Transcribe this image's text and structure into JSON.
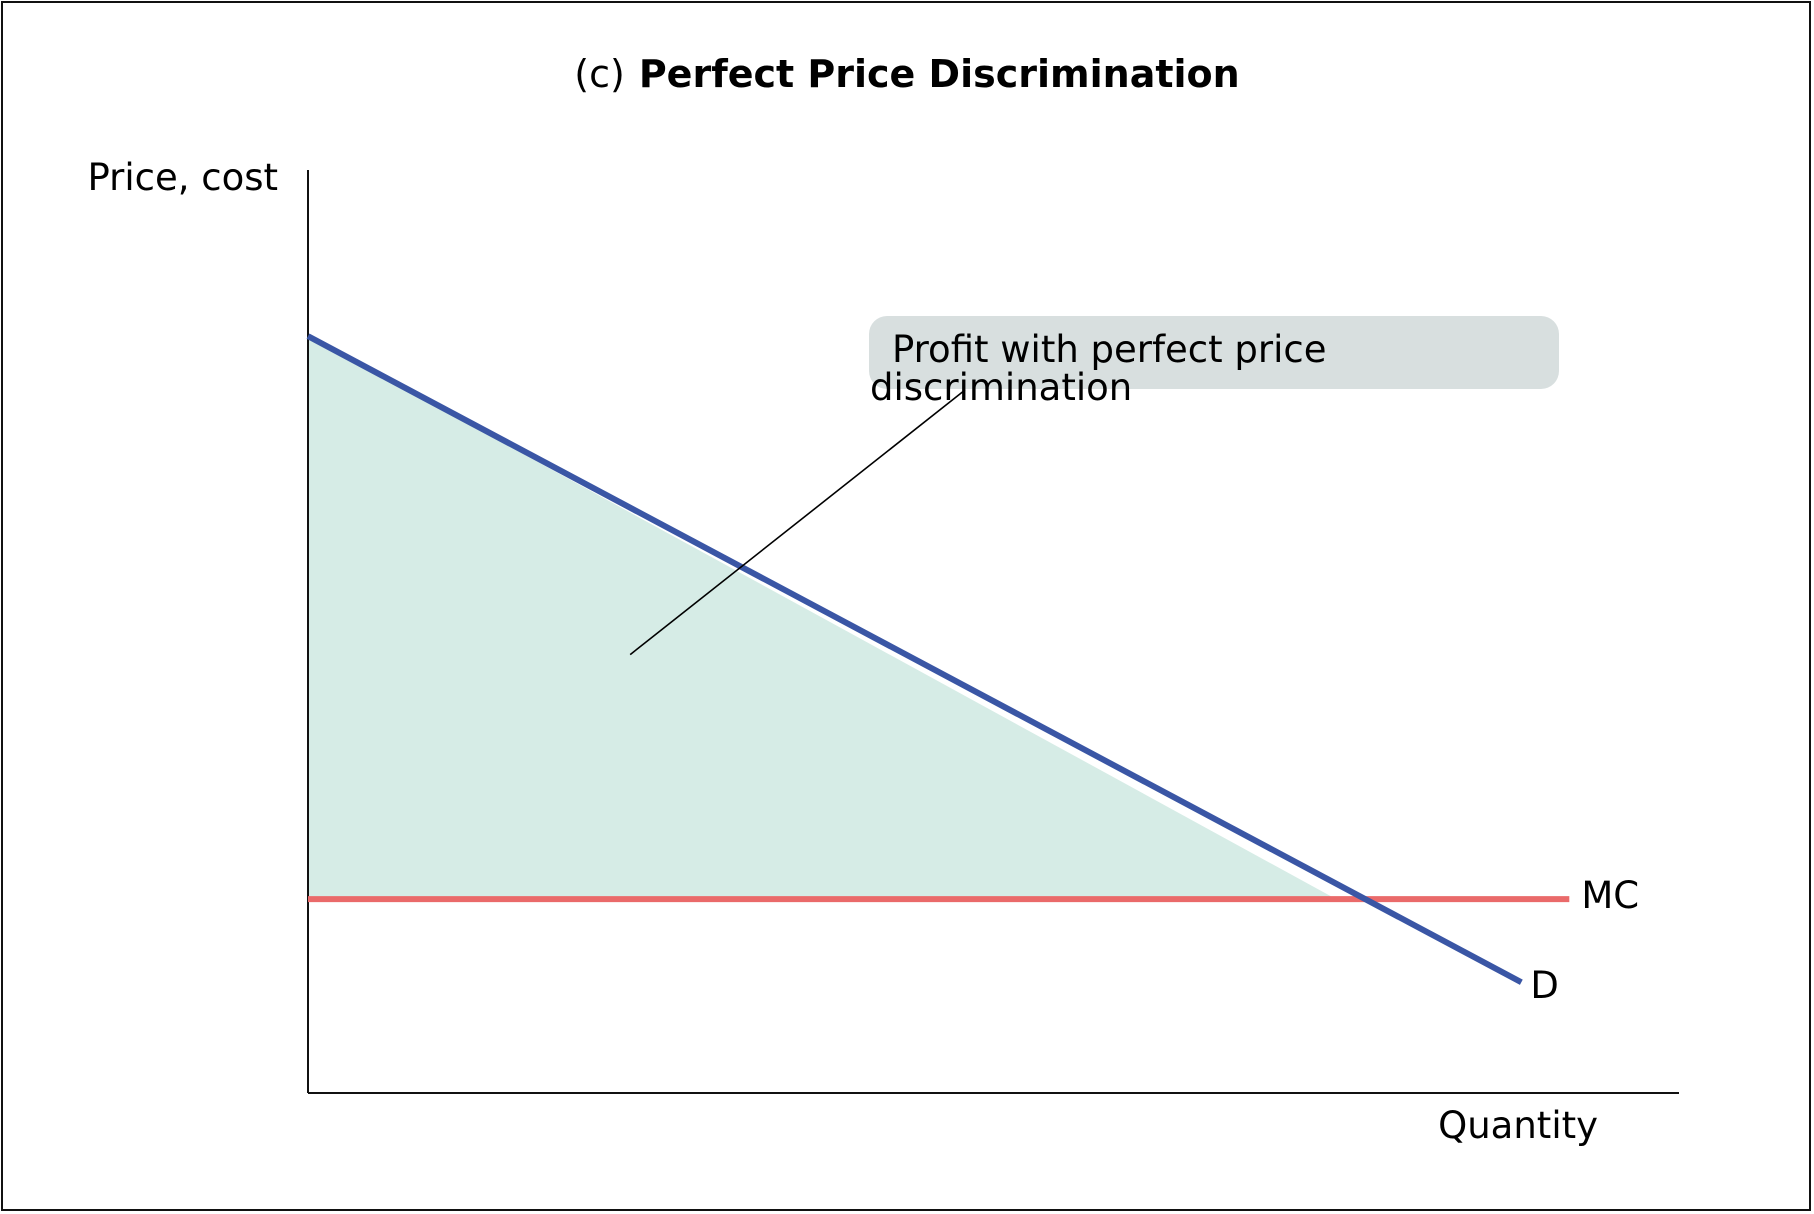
{
  "chart_data": {
    "type": "line",
    "title_prefix": "(c)",
    "title": "Perfect Price Discrimination",
    "xlabel": "Quantity",
    "ylabel": "Price, cost",
    "xlim": [
      0,
      10
    ],
    "ylim": [
      0,
      10
    ],
    "grid": false,
    "ticks": "none",
    "series": [
      {
        "name": "D",
        "color": "#3a56a5",
        "points": [
          [
            0,
            8.2
          ],
          [
            8.85,
            1.2
          ]
        ]
      },
      {
        "name": "MC",
        "color": "#ea6a6a",
        "points": [
          [
            0,
            2.1
          ],
          [
            9.2,
            2.1
          ]
        ]
      }
    ],
    "shaded_region": {
      "fill": "#d6ece6",
      "points": [
        [
          0,
          8.2
        ],
        [
          7.5,
          2.1
        ],
        [
          0,
          2.1
        ]
      ]
    },
    "annotation": {
      "line1": "Profit with perfect price",
      "line2": "discrimination",
      "box_color": "#d8dfdf",
      "pointer_to": [
        2.35,
        4.75
      ]
    }
  }
}
